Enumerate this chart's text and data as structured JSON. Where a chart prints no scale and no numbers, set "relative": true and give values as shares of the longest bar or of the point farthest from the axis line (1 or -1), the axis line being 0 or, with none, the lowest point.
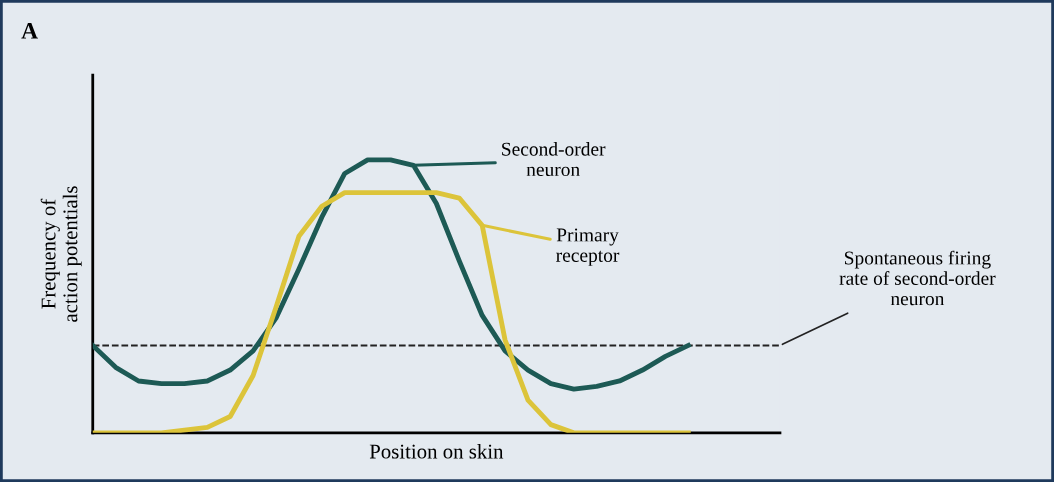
{
  "chart_data": {
    "type": "line",
    "relative": true,
    "title": "A",
    "xlabel": "Position on skin",
    "ylabel": "Frequency of\naction potentials",
    "categories": [
      null,
      null,
      null,
      null,
      null,
      null,
      null,
      null,
      null,
      null,
      null,
      null,
      null,
      null,
      null,
      null,
      null,
      null,
      null,
      null,
      null,
      null,
      null,
      null,
      null,
      null,
      null,
      null,
      null,
      null,
      null
    ],
    "series": [
      {
        "name": "Second-order\nneuron",
        "color": "#1d5a55",
        "values": [
          0.32,
          0.24,
          0.19,
          0.18,
          0.18,
          0.19,
          0.23,
          0.3,
          0.42,
          0.6,
          0.79,
          0.95,
          1.0,
          1.0,
          0.98,
          0.84,
          0.63,
          0.43,
          0.3,
          0.23,
          0.18,
          0.16,
          0.17,
          0.19,
          0.23,
          0.28,
          0.32,
          null,
          null,
          null,
          null
        ]
      },
      {
        "name": "Primary\nreceptor",
        "color": "#dcc43a",
        "values": [
          0,
          0,
          0,
          0,
          0.01,
          0.02,
          0.06,
          0.21,
          0.46,
          0.72,
          0.83,
          0.88,
          0.88,
          0.88,
          0.88,
          0.88,
          0.86,
          0.76,
          0.34,
          0.12,
          0.03,
          0,
          0,
          0,
          0,
          0,
          0,
          null,
          null,
          null,
          null
        ]
      }
    ],
    "ref_lines": [
      {
        "axis": "y",
        "value": 0.32,
        "label": "Spontaneous firing\nrate of second-order\nneuron",
        "color": "#222222",
        "line_style": "dashed"
      }
    ],
    "legend": "top right",
    "marker": "none",
    "line_style": "solid",
    "tick_labels": false
  }
}
